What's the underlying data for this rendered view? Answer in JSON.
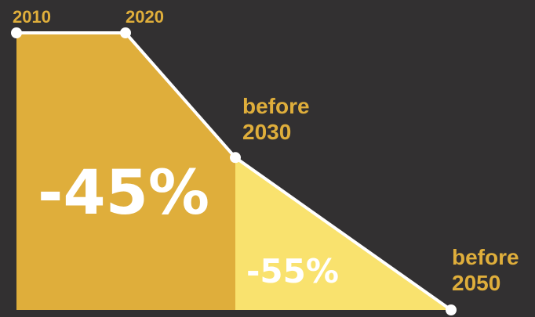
{
  "colors": {
    "background": "#323031",
    "first_area": "#dfae3b",
    "second_area": "#f9e26e",
    "line": "#ffffff",
    "label": "#dfae3b",
    "percent_text": "#ffffff"
  },
  "chart_data": {
    "type": "area",
    "points": [
      {
        "label": "2010",
        "value": 100
      },
      {
        "label": "2020",
        "value": 100
      },
      {
        "label_lines": [
          "before",
          "2030"
        ],
        "value": 55
      },
      {
        "label_lines": [
          "before",
          "2050"
        ],
        "value": 0
      }
    ],
    "regions": [
      {
        "label": "-45%"
      },
      {
        "label": "-55%"
      }
    ],
    "ylim": [
      0,
      100
    ]
  }
}
